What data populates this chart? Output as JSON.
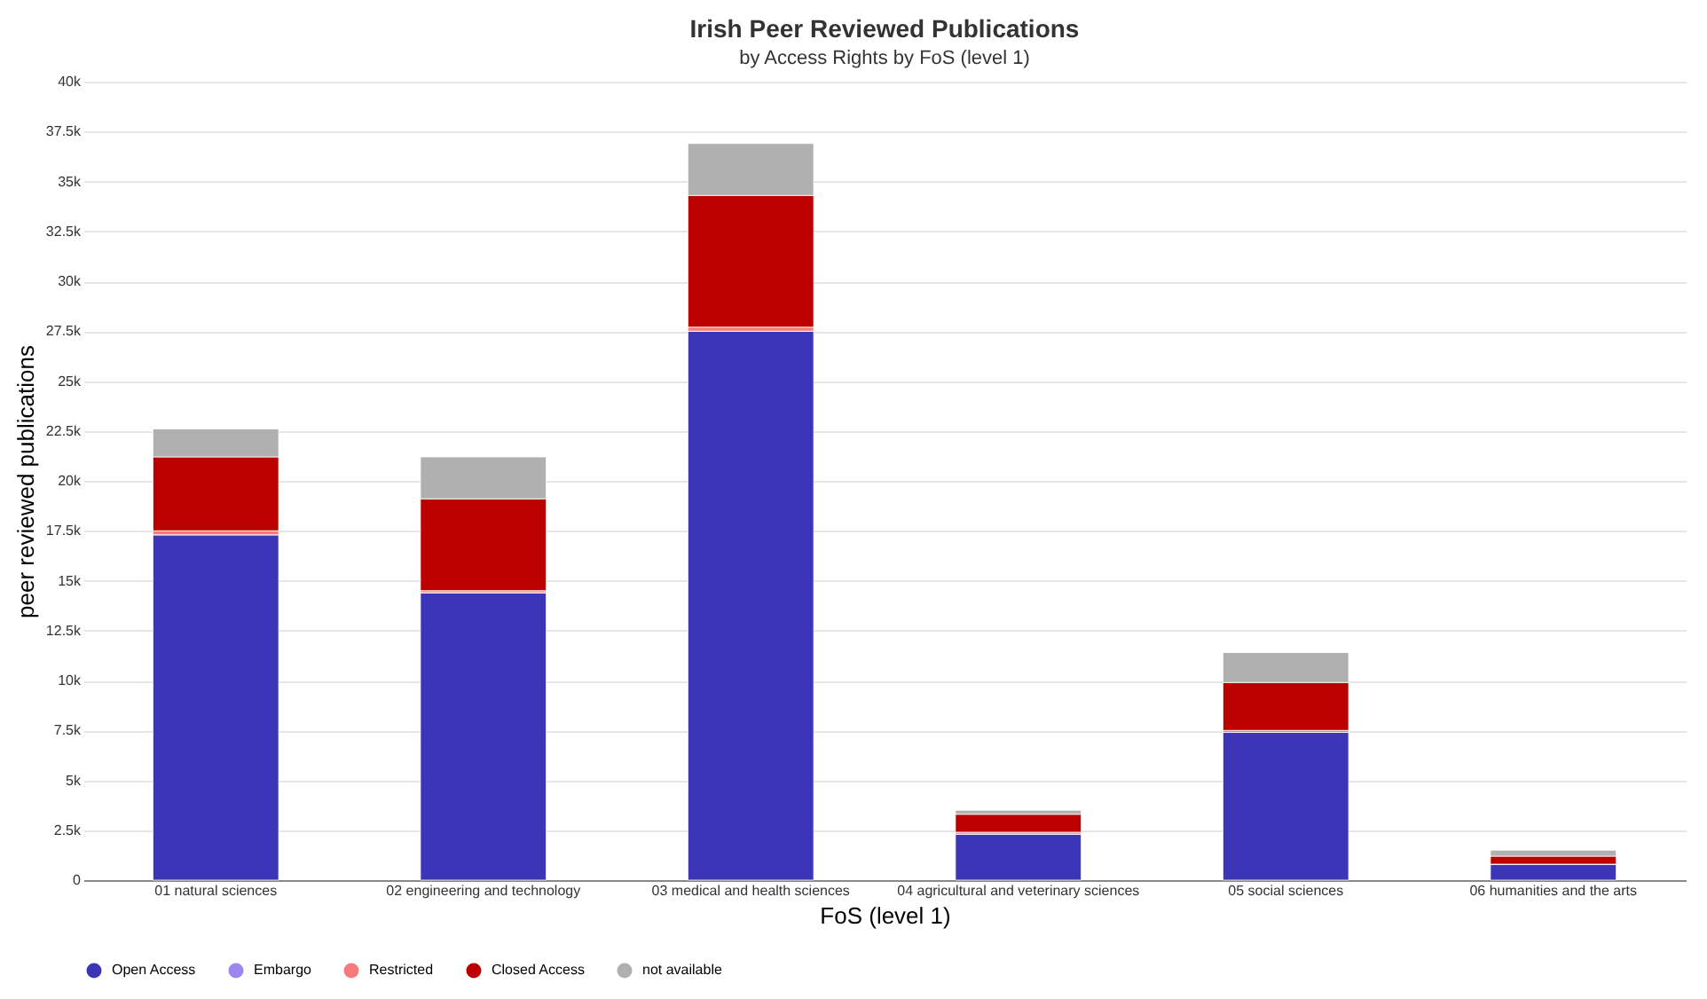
{
  "chart_data": {
    "type": "bar",
    "title": "Irish Peer Reviewed Publications",
    "subtitle": "by Access Rights by FoS (level 1)",
    "xlabel": "FoS (level 1)",
    "ylabel": "peer reviewed publications",
    "categories": [
      "01 natural sciences",
      "02 engineering and technology",
      "03 medical and health sciences",
      "04 agricultural and veterinary sciences",
      "05 social sciences",
      "06 humanities and the arts"
    ],
    "stacked": true,
    "series": [
      {
        "name": "Open Access",
        "color": "#3d35b8",
        "values": [
          17300,
          14400,
          27500,
          2300,
          7400,
          800
        ]
      },
      {
        "name": "Embargo",
        "color": "#9d86f0",
        "values": [
          0,
          0,
          0,
          0,
          0,
          0
        ]
      },
      {
        "name": "Restricted",
        "color": "#f77a7a",
        "values": [
          200,
          100,
          200,
          100,
          100,
          0
        ]
      },
      {
        "name": "Closed Access",
        "color": "#bb0000",
        "values": [
          3700,
          4600,
          6600,
          900,
          2400,
          400
        ]
      },
      {
        "name": "not available",
        "color": "#b0b0b0",
        "values": [
          1400,
          2100,
          2600,
          200,
          1500,
          300
        ]
      }
    ],
    "ylim": [
      0,
      40000
    ],
    "yticks": [
      0,
      {
        "value": 2500,
        "label": "2.5k"
      },
      {
        "value": 5000,
        "label": "5k"
      },
      {
        "value": 7500,
        "label": "7.5k"
      },
      {
        "value": 10000,
        "label": "10k"
      },
      {
        "value": 12500,
        "label": "12.5k"
      },
      {
        "value": 15000,
        "label": "15k"
      },
      {
        "value": 17500,
        "label": "17.5k"
      },
      {
        "value": 20000,
        "label": "20k"
      },
      {
        "value": 22500,
        "label": "22.5k"
      },
      {
        "value": 25000,
        "label": "25k"
      },
      {
        "value": 27500,
        "label": "27.5k"
      },
      {
        "value": 30000,
        "label": "30k"
      },
      {
        "value": 32500,
        "label": "32.5k"
      },
      {
        "value": 35000,
        "label": "35k"
      },
      {
        "value": 37500,
        "label": "37.5k"
      },
      {
        "value": 40000,
        "label": "40k"
      }
    ],
    "grid": "y",
    "legend": "bottom"
  }
}
